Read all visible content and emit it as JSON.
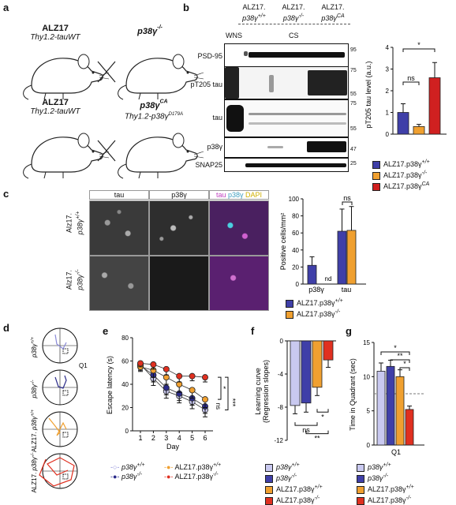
{
  "panel_a": {
    "label": "a",
    "row1": {
      "left_title": "ALZ17",
      "left_sub": "Thy1.2-tauWT",
      "right_title": "p38γ",
      "right_sup": "-/-"
    },
    "row2": {
      "left_title": "ALZ17",
      "left_sub": "Thy1.2-tauWT",
      "right_title": "p38γ",
      "right_sup": "CA",
      "right_sub": "Thy1.2-p38γ",
      "right_sub_sup": "D179A"
    },
    "cross": "×"
  },
  "panel_b": {
    "label": "b",
    "col_headers": [
      "ALZ17.",
      "ALZ17.",
      "ALZ17."
    ],
    "col_genotypes": [
      "p38γ",
      "p38γ",
      "p38γ"
    ],
    "col_sups": [
      "+/+",
      "-/-",
      "CA"
    ],
    "fraction_labels": [
      "W",
      "N",
      "S",
      "CS"
    ],
    "blots": [
      {
        "label": "PSD-95",
        "markers": [
          "95"
        ]
      },
      {
        "label": "pT205 tau",
        "markers": [
          "75",
          "55"
        ]
      },
      {
        "label": "tau",
        "markers": [
          "75",
          "55"
        ]
      },
      {
        "label": "p38γ",
        "markers": [
          "47"
        ]
      },
      {
        "label": "SNAP25",
        "markers": [
          "25"
        ]
      }
    ]
  },
  "panel_c": {
    "label": "c",
    "column_headers": [
      "tau",
      "p38γ"
    ],
    "merge_header": {
      "tau": "tau",
      "p38": "p38γ",
      "dapi": "DAPI"
    },
    "row_labels": [
      {
        "line1": "Alz17.",
        "line2": "p38γ",
        "sup": "+/+"
      },
      {
        "line1": "Alz17.",
        "line2": "p38γ",
        "sup": "-/-"
      }
    ],
    "nd": "nd"
  },
  "panel_d": {
    "label": "d",
    "q_label": "Q1",
    "rows": [
      {
        "line1": "p38γ",
        "sup": "+/+"
      },
      {
        "line1": "p38γ",
        "sup": "-/-"
      },
      {
        "line1": "ALZ17.",
        "line2": "p38γ",
        "sup": "+/+"
      },
      {
        "line1": "ALZ17.",
        "line2": "p38γ",
        "sup": "-/-"
      }
    ],
    "colors": [
      "#8a8ad8",
      "#2b2b8a",
      "#f0a030",
      "#e03020"
    ]
  },
  "panel_e": {
    "label": "e"
  },
  "panel_f": {
    "label": "f"
  },
  "panel_g": {
    "label": "g"
  },
  "legend_bottom": {
    "items": [
      {
        "label": "p38γ",
        "sup": "+/+",
        "color": "#c9c9f0"
      },
      {
        "label": "p38γ",
        "sup": "-/-",
        "color": "#2b2b8a"
      },
      {
        "label": "ALZ17.p38γ",
        "sup": "+/+",
        "color": "#f0a030"
      },
      {
        "label": "ALZ17.p38γ",
        "sup": "-/-",
        "color": "#e03020"
      }
    ]
  },
  "chart_data": [
    {
      "panel": "b",
      "type": "bar",
      "ylabel": "pT205 tau level (a.u.)",
      "ylim": [
        0,
        4
      ],
      "yticks": [
        "0",
        "1",
        "2",
        "3",
        "4"
      ],
      "categories": [
        "ALZ17.p38γ+/+",
        "ALZ17.p38γ-/-",
        "ALZ17.p38γCA"
      ],
      "values": [
        1.0,
        0.35,
        2.6
      ],
      "errors": [
        0.4,
        0.1,
        0.7
      ],
      "colors": [
        "#3f3fa8",
        "#f0a030",
        "#d02020"
      ],
      "annotations": [
        "ns",
        "*"
      ],
      "legend": [
        {
          "label": "ALZ17.p38γ",
          "sup": "+/+"
        },
        {
          "label": "ALZ17.p38γ",
          "sup": "-/-"
        },
        {
          "label": "ALZ17.p38γ",
          "sup": "CA"
        }
      ]
    },
    {
      "panel": "c",
      "type": "bar",
      "ylabel": "Positive cells/mm²",
      "ylim": [
        0,
        100
      ],
      "yticks": [
        "0",
        "20",
        "40",
        "60",
        "80",
        "100"
      ],
      "categories": [
        "p38γ",
        "tau"
      ],
      "series": [
        {
          "name": "Alz17.p38γ+/+",
          "values": [
            22,
            62
          ],
          "errors": [
            10,
            26
          ],
          "color": "#3f3fa8"
        },
        {
          "name": "Alz17.p38γ-/-",
          "values": [
            0,
            63
          ],
          "errors": [
            0,
            28
          ],
          "color": "#f0a030"
        }
      ],
      "annotations": [
        "ns",
        "nd"
      ],
      "legend": [
        {
          "label": "ALZ17.p38γ",
          "sup": "+/+"
        },
        {
          "label": "ALZ17.p38γ",
          "sup": "-/-"
        }
      ]
    },
    {
      "panel": "e",
      "type": "line",
      "xlabel": "Day",
      "ylabel": "Escape latency (s)",
      "x": [
        1,
        2,
        3,
        4,
        5,
        6
      ],
      "xticks": [
        "1",
        "2",
        "3",
        "4",
        "5",
        "6"
      ],
      "ylim": [
        0,
        80
      ],
      "yticks": [
        "0",
        "20",
        "40",
        "60",
        "80"
      ],
      "series": [
        {
          "name": "p38γ+/+",
          "values": [
            57,
            45,
            34,
            30,
            25,
            18
          ],
          "errors": [
            4,
            6,
            6,
            6,
            6,
            6
          ],
          "color": "#c9c9f0"
        },
        {
          "name": "p38γ-/-",
          "values": [
            56,
            48,
            37,
            32,
            28,
            21
          ],
          "errors": [
            4,
            6,
            6,
            6,
            6,
            6
          ],
          "color": "#2b2b8a"
        },
        {
          "name": "ALZ17.p38γ+/+",
          "values": [
            55,
            52,
            46,
            40,
            35,
            27
          ],
          "errors": [
            4,
            6,
            6,
            7,
            7,
            7
          ],
          "color": "#f0a030"
        },
        {
          "name": "ALZ17.p38γ-/-",
          "values": [
            58,
            57,
            53,
            47,
            47,
            46
          ],
          "errors": [
            3,
            4,
            5,
            5,
            4,
            4
          ],
          "color": "#e03020"
        }
      ],
      "annotations": [
        "*",
        "***",
        "ns"
      ],
      "legend": [
        {
          "label": "p38γ",
          "sup": "+/+"
        },
        {
          "label": "ALZ17.p38γ",
          "sup": "+/+"
        },
        {
          "label": "p38γ",
          "sup": "-/-"
        },
        {
          "label": "ALZ17.p38γ",
          "sup": "-/-"
        }
      ]
    },
    {
      "panel": "f",
      "type": "bar",
      "ylabel": "Learning curve (Regression slopes)",
      "ylim": [
        -12,
        0
      ],
      "yticks": [
        "-12",
        "-8",
        "-4",
        "0"
      ],
      "categories": [
        "p38γ+/+",
        "p38γ-/-",
        "ALZ17.p38γ+/+",
        "ALZ17.p38γ-/-"
      ],
      "values": [
        -7.8,
        -7.5,
        -5.6,
        -2.3
      ],
      "errors": [
        1.0,
        1.1,
        1.0,
        0.9
      ],
      "colors": [
        "#c9c9f0",
        "#3f3fa8",
        "#f0a030",
        "#e03020"
      ],
      "annotations": [
        "ns",
        "*",
        "**"
      ]
    },
    {
      "panel": "g",
      "type": "bar",
      "ylabel": "Time in Quadrant (sec)",
      "xlabel": "Q1",
      "ylim": [
        0,
        15
      ],
      "yticks": [
        "0",
        "5",
        "10",
        "15"
      ],
      "reference_line": 7.5,
      "categories": [
        "p38γ+/+",
        "p38γ-/-",
        "ALZ17.p38γ+/+",
        "ALZ17.p38γ-/-"
      ],
      "values": [
        10.8,
        11.5,
        10.0,
        5.2
      ],
      "errors": [
        1.2,
        0.9,
        1.0,
        0.5
      ],
      "colors": [
        "#c9c9f0",
        "#3f3fa8",
        "#f0a030",
        "#e03020"
      ],
      "annotations": [
        "*",
        "**",
        "*"
      ]
    }
  ]
}
